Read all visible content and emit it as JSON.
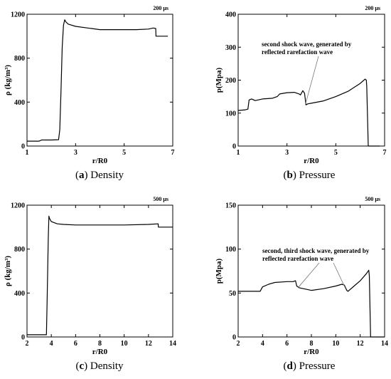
{
  "chart_data": [
    {
      "id": "a",
      "type": "line",
      "caption_letter": "a",
      "caption_text": "Density",
      "time_label": "200 μs",
      "ylabel": "ρ (kg/m³)",
      "xlabel": "r/R0",
      "xlim": [
        1,
        7
      ],
      "ylim": [
        0,
        1200
      ],
      "xticks": [
        1,
        3,
        5,
        7
      ],
      "yticks": [
        0,
        400,
        800,
        1200
      ],
      "annotations": [],
      "series": [
        {
          "x": [
            1.0,
            1.5,
            1.6,
            2.0,
            2.3,
            2.35,
            2.4,
            2.45,
            2.5,
            2.55,
            2.6,
            2.7,
            3.0,
            3.5,
            4.0,
            5.0,
            5.5,
            6.0,
            6.2,
            6.3,
            6.31,
            6.5,
            6.8
          ],
          "y": [
            45,
            45,
            55,
            55,
            58,
            150,
            500,
            900,
            1100,
            1150,
            1130,
            1110,
            1090,
            1075,
            1060,
            1060,
            1060,
            1065,
            1075,
            1070,
            1000,
            1000,
            1000
          ]
        }
      ]
    },
    {
      "id": "b",
      "type": "line",
      "caption_letter": "b",
      "caption_text": "Pressure",
      "time_label": "200 μs",
      "ylabel": "p(Mpa)",
      "xlabel": "r/R0",
      "xlim": [
        1,
        7
      ],
      "ylim": [
        0,
        400
      ],
      "xticks": [
        1,
        3,
        5,
        7
      ],
      "yticks": [
        0,
        100,
        200,
        300,
        400
      ],
      "annotations": [
        {
          "lines": [
            "second shock wave, generated by",
            "reflected rarefaction wave"
          ],
          "point": [
            3.75,
            125
          ]
        }
      ],
      "series": [
        {
          "x": [
            1.0,
            1.3,
            1.4,
            1.45,
            1.55,
            1.7,
            2.0,
            2.4,
            2.6,
            2.7,
            3.0,
            3.3,
            3.5,
            3.55,
            3.65,
            3.72,
            3.78,
            3.85,
            4.0,
            4.5,
            5.0,
            5.5,
            6.0,
            6.2,
            6.25,
            6.27,
            6.33,
            6.8
          ],
          "y": [
            108,
            110,
            112,
            140,
            143,
            138,
            143,
            145,
            150,
            158,
            162,
            163,
            158,
            155,
            168,
            160,
            125,
            128,
            130,
            137,
            150,
            166,
            190,
            203,
            200,
            180,
            0,
            0
          ]
        }
      ]
    },
    {
      "id": "c",
      "type": "line",
      "caption_letter": "c",
      "caption_text": "Density",
      "time_label": "500 μs",
      "ylabel": "ρ (kg/m³)",
      "xlabel": "r/R0",
      "xlim": [
        2,
        14
      ],
      "ylim": [
        0,
        1200
      ],
      "xticks": [
        2,
        4,
        6,
        8,
        10,
        12,
        14
      ],
      "yticks": [
        0,
        400,
        800,
        1200
      ],
      "annotations": [],
      "series": [
        {
          "x": [
            2.0,
            3.0,
            3.6,
            3.65,
            3.75,
            3.8,
            3.85,
            4.0,
            4.5,
            5.0,
            6.0,
            8.0,
            10.0,
            12.0,
            12.8,
            12.82,
            13.0,
            14.0
          ],
          "y": [
            20,
            20,
            20,
            300,
            900,
            1100,
            1080,
            1050,
            1030,
            1025,
            1020,
            1020,
            1020,
            1025,
            1030,
            1000,
            1000,
            1000
          ]
        }
      ]
    },
    {
      "id": "d",
      "type": "line",
      "caption_letter": "d",
      "caption_text": "Pressure",
      "time_label": "500 μs",
      "ylabel": "p(Mpa)",
      "xlabel": "r/R0",
      "xlim": [
        2,
        14
      ],
      "ylim": [
        0,
        150
      ],
      "xticks": [
        2,
        4,
        6,
        8,
        10,
        12,
        14
      ],
      "yticks": [
        0,
        50,
        100,
        150
      ],
      "annotations": [
        {
          "lines": [
            "second, third shock wave, generated by",
            "reflected rarefaction wave"
          ],
          "point": [
            6.9,
            56
          ],
          "point2": [
            10.8,
            55
          ]
        }
      ],
      "series": [
        {
          "x": [
            2.0,
            3.0,
            3.8,
            4.0,
            4.5,
            5.0,
            6.0,
            6.5,
            6.7,
            6.8,
            7.0,
            8.0,
            9.0,
            10.0,
            10.5,
            10.7,
            10.9,
            11.0,
            11.5,
            12.0,
            12.5,
            12.7,
            12.75,
            12.85,
            14.0
          ],
          "y": [
            52,
            52,
            52,
            57,
            60,
            62,
            63,
            63,
            64,
            58,
            56,
            53,
            55,
            58,
            60,
            59,
            53,
            52,
            58,
            64,
            72,
            76,
            70,
            0,
            0
          ]
        }
      ]
    }
  ]
}
